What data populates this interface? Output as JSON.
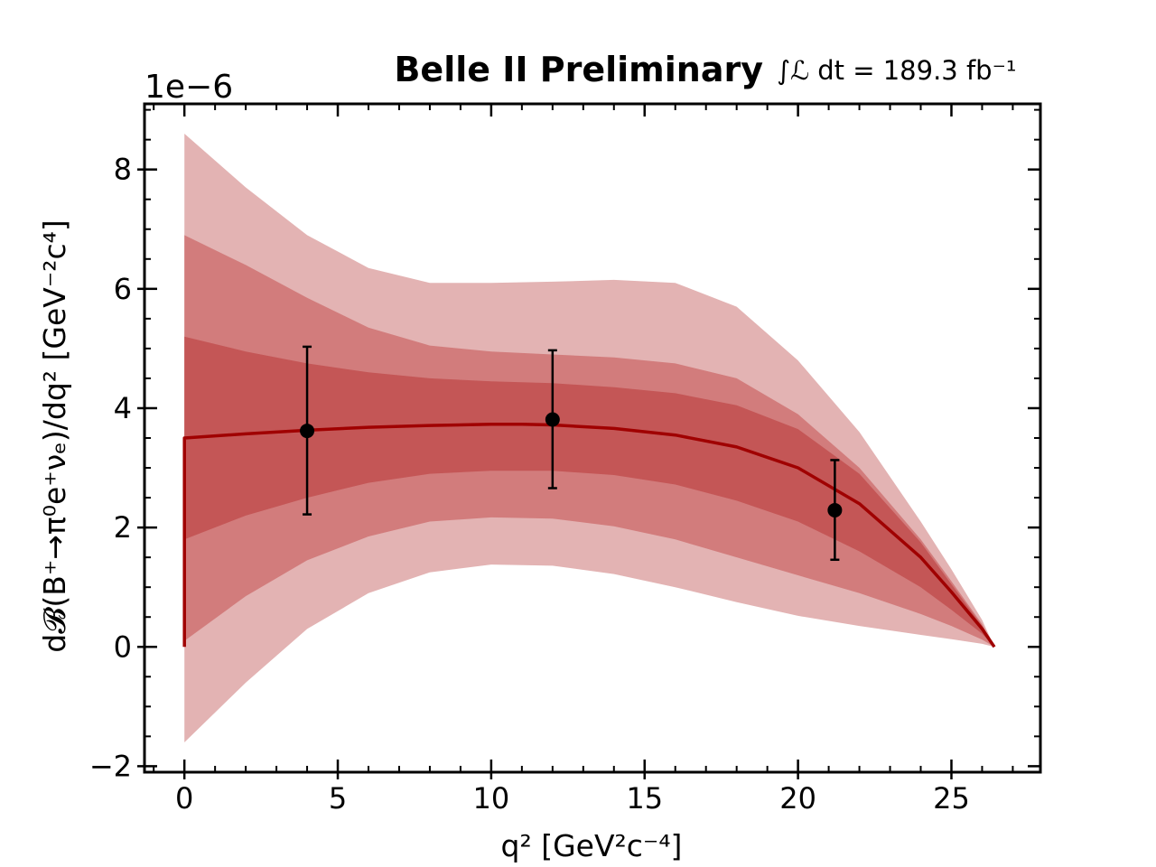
{
  "chart_data": {
    "type": "line",
    "title": "Belle II Preliminary",
    "luminosity_label": "∫ℒ dt = 189.3 fb⁻¹",
    "offset_label": "1e−6",
    "xlabel": "q² [GeV²c⁻⁴]",
    "ylabel": "d𝓑(B⁺→π⁰e⁺νₑ)/dq² [GeV⁻²c⁴]",
    "xlim": [
      -1.3,
      27.9
    ],
    "ylim": [
      -2.1,
      9.1
    ],
    "x_ticks": [
      0,
      5,
      10,
      15,
      20,
      25
    ],
    "x_tick_labels": [
      "0",
      "5",
      "10",
      "15",
      "20",
      "25"
    ],
    "y_ticks": [
      -2,
      0,
      2,
      4,
      6,
      8
    ],
    "y_tick_labels": [
      "−2",
      "0",
      "2",
      "4",
      "6",
      "8"
    ],
    "fit": {
      "name": "Fit",
      "color": "#a00000",
      "x": [
        0,
        2,
        4,
        6,
        8,
        10,
        11,
        12,
        14,
        16,
        18,
        20,
        22,
        24,
        25,
        26,
        26.4
      ],
      "y": [
        3.5,
        3.57,
        3.63,
        3.68,
        3.71,
        3.73,
        3.73,
        3.72,
        3.66,
        3.55,
        3.35,
        3.0,
        2.4,
        1.5,
        0.92,
        0.3,
        0.0
      ],
      "band_x": [
        0,
        2,
        4,
        6,
        8,
        10,
        12,
        14,
        16,
        18,
        20,
        22,
        24,
        25,
        26,
        26.4
      ],
      "bands": [
        {
          "name": "3σ",
          "color": "#e3b3b3",
          "lower": [
            -1.6,
            -0.6,
            0.3,
            0.9,
            1.25,
            1.38,
            1.36,
            1.22,
            1.0,
            0.75,
            0.52,
            0.35,
            0.2,
            0.13,
            0.05,
            0.0
          ],
          "upper": [
            8.6,
            7.7,
            6.9,
            6.35,
            6.1,
            6.1,
            6.12,
            6.15,
            6.1,
            5.7,
            4.8,
            3.6,
            2.1,
            1.3,
            0.45,
            0.0
          ]
        },
        {
          "name": "2σ",
          "color": "#d27c7c",
          "lower": [
            0.1,
            0.85,
            1.45,
            1.85,
            2.1,
            2.17,
            2.15,
            2.02,
            1.8,
            1.5,
            1.2,
            0.9,
            0.55,
            0.35,
            0.12,
            0.0
          ],
          "upper": [
            6.9,
            6.4,
            5.85,
            5.35,
            5.05,
            4.95,
            4.9,
            4.85,
            4.75,
            4.5,
            3.9,
            3.0,
            1.8,
            1.1,
            0.38,
            0.0
          ]
        },
        {
          "name": "1σ",
          "color": "#c45656",
          "lower": [
            1.8,
            2.2,
            2.5,
            2.75,
            2.9,
            2.95,
            2.95,
            2.88,
            2.72,
            2.45,
            2.1,
            1.6,
            1.0,
            0.62,
            0.22,
            0.0
          ],
          "upper": [
            5.2,
            4.95,
            4.75,
            4.6,
            4.5,
            4.45,
            4.42,
            4.35,
            4.25,
            4.05,
            3.65,
            2.9,
            1.75,
            1.05,
            0.35,
            0.0
          ]
        }
      ]
    },
    "data_points": {
      "name": "Data",
      "color": "#000000",
      "x": [
        4.0,
        12.0,
        21.2
      ],
      "y": [
        3.62,
        3.81,
        2.29
      ],
      "yerr_low": [
        1.4,
        1.15,
        0.83
      ],
      "yerr_high": [
        1.41,
        1.16,
        0.84
      ]
    }
  }
}
